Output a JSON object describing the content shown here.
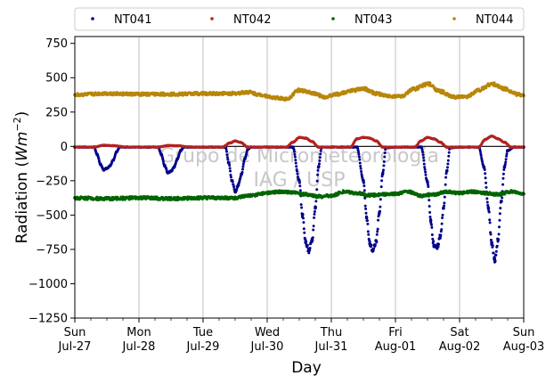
{
  "chart_data": {
    "type": "scatter",
    "xlabel": "Day",
    "ylabel_main": "Radiation (",
    "ylabel_unit": "Wm",
    "ylabel_exp": "−2",
    "ylabel_close": ")",
    "ylim": [
      -1250,
      800
    ],
    "xlim": [
      0,
      7
    ],
    "grid": "vertical",
    "legend_position": "top, outside plot",
    "yticks": [
      {
        "value": 750,
        "label": "750"
      },
      {
        "value": 500,
        "label": "500"
      },
      {
        "value": 250,
        "label": "250"
      },
      {
        "value": 0,
        "label": "0"
      },
      {
        "value": -250,
        "label": "−250"
      },
      {
        "value": -500,
        "label": "−500"
      },
      {
        "value": -750,
        "label": "−750"
      },
      {
        "value": -1000,
        "label": "−1000"
      },
      {
        "value": -1250,
        "label": "−1250"
      }
    ],
    "xticks": [
      {
        "value": 0,
        "day": "Sun",
        "date": "Jul-27"
      },
      {
        "value": 1,
        "day": "Mon",
        "date": "Jul-28"
      },
      {
        "value": 2,
        "day": "Tue",
        "date": "Jul-29"
      },
      {
        "value": 3,
        "day": "Wed",
        "date": "Jul-30"
      },
      {
        "value": 4,
        "day": "Thu",
        "date": "Jul-31"
      },
      {
        "value": 5,
        "day": "Fri",
        "date": "Aug-01"
      },
      {
        "value": 6,
        "day": "Sat",
        "date": "Aug-02"
      },
      {
        "value": 7,
        "day": "Sun",
        "date": "Aug-03"
      }
    ],
    "watermark": [
      "Grupo de Micrometeorologia",
      "IAG / USP"
    ],
    "series": [
      {
        "name": "NT041",
        "color": "#00008b",
        "x": [
          0.0,
          0.15,
          0.3,
          0.35,
          0.4,
          0.45,
          0.5,
          0.55,
          0.6,
          0.65,
          0.7,
          0.8,
          1.0,
          1.15,
          1.3,
          1.35,
          1.4,
          1.45,
          1.5,
          1.55,
          1.6,
          1.65,
          1.7,
          1.8,
          2.0,
          2.15,
          2.35,
          2.4,
          2.45,
          2.5,
          2.55,
          2.6,
          2.65,
          2.7,
          2.75,
          2.8,
          3.0,
          3.15,
          3.4,
          3.5,
          3.55,
          3.6,
          3.65,
          3.7,
          3.75,
          3.8,
          3.85,
          4.0,
          4.15,
          4.4,
          4.5,
          4.55,
          4.6,
          4.65,
          4.7,
          4.75,
          4.8,
          4.85,
          5.0,
          5.15,
          5.4,
          5.5,
          5.55,
          5.6,
          5.65,
          5.7,
          5.75,
          5.8,
          5.85,
          6.0,
          6.15,
          6.3,
          6.38,
          6.45,
          6.5,
          6.55,
          6.6,
          6.65,
          6.7,
          6.75,
          6.85,
          7.0
        ],
        "y": [
          -5,
          -5,
          -5,
          -60,
          -130,
          -170,
          -160,
          -140,
          -100,
          -40,
          -5,
          -5,
          -5,
          -5,
          -5,
          -60,
          -140,
          -190,
          -180,
          -150,
          -90,
          -30,
          -5,
          -5,
          -5,
          -5,
          -5,
          -120,
          -250,
          -330,
          -280,
          -200,
          -90,
          -20,
          -5,
          -5,
          -5,
          -5,
          -5,
          -250,
          -500,
          -700,
          -760,
          -680,
          -450,
          -150,
          -5,
          -5,
          -5,
          -5,
          -250,
          -520,
          -710,
          -760,
          -690,
          -480,
          -200,
          -10,
          -5,
          -5,
          -5,
          -260,
          -540,
          -720,
          -740,
          -650,
          -450,
          -180,
          -10,
          -5,
          -5,
          -5,
          -150,
          -450,
          -700,
          -830,
          -680,
          -400,
          -150,
          -30,
          -5,
          -5
        ]
      },
      {
        "name": "NT042",
        "color": "#b22222",
        "x": [
          0.0,
          0.3,
          0.45,
          0.6,
          0.8,
          1.0,
          1.3,
          1.45,
          1.6,
          1.8,
          2.0,
          2.3,
          2.42,
          2.5,
          2.58,
          2.7,
          3.0,
          3.3,
          3.4,
          3.5,
          3.6,
          3.7,
          3.8,
          4.0,
          4.3,
          4.4,
          4.5,
          4.6,
          4.7,
          4.8,
          5.0,
          5.3,
          5.4,
          5.5,
          5.6,
          5.7,
          5.8,
          6.0,
          6.3,
          6.4,
          6.5,
          6.6,
          6.7,
          6.8,
          7.0
        ],
        "y": [
          -5,
          -5,
          8,
          5,
          -5,
          -5,
          -5,
          6,
          4,
          -5,
          -5,
          -5,
          25,
          40,
          30,
          -5,
          -5,
          -5,
          30,
          65,
          60,
          35,
          -5,
          -5,
          -5,
          55,
          65,
          60,
          40,
          -5,
          -5,
          -5,
          40,
          65,
          55,
          30,
          -5,
          -5,
          -5,
          50,
          75,
          55,
          30,
          -5,
          -5
        ]
      },
      {
        "name": "NT043",
        "color": "#006400",
        "x": [
          0.0,
          0.5,
          1.0,
          1.5,
          2.0,
          2.5,
          2.7,
          3.0,
          3.2,
          3.4,
          3.6,
          3.8,
          4.0,
          4.2,
          4.4,
          4.6,
          4.8,
          5.0,
          5.2,
          5.4,
          5.6,
          5.8,
          6.0,
          6.2,
          6.4,
          6.6,
          6.8,
          7.0
        ],
        "y": [
          -375,
          -380,
          -375,
          -380,
          -375,
          -375,
          -360,
          -340,
          -330,
          -335,
          -350,
          -365,
          -360,
          -330,
          -340,
          -355,
          -350,
          -345,
          -330,
          -360,
          -350,
          -330,
          -340,
          -330,
          -340,
          -350,
          -330,
          -345
        ]
      },
      {
        "name": "NT044",
        "color": "#b8860b",
        "x": [
          0.0,
          0.5,
          1.0,
          1.5,
          2.0,
          2.5,
          2.7,
          2.9,
          3.1,
          3.3,
          3.5,
          3.7,
          3.9,
          4.1,
          4.3,
          4.5,
          4.7,
          4.9,
          5.1,
          5.3,
          5.5,
          5.7,
          5.9,
          6.1,
          6.3,
          6.5,
          6.7,
          6.9,
          7.0
        ],
        "y": [
          375,
          385,
          380,
          380,
          385,
          385,
          395,
          375,
          355,
          345,
          410,
          390,
          360,
          380,
          405,
          420,
          385,
          365,
          365,
          420,
          455,
          400,
          360,
          360,
          410,
          455,
          420,
          380,
          370
        ]
      }
    ]
  }
}
